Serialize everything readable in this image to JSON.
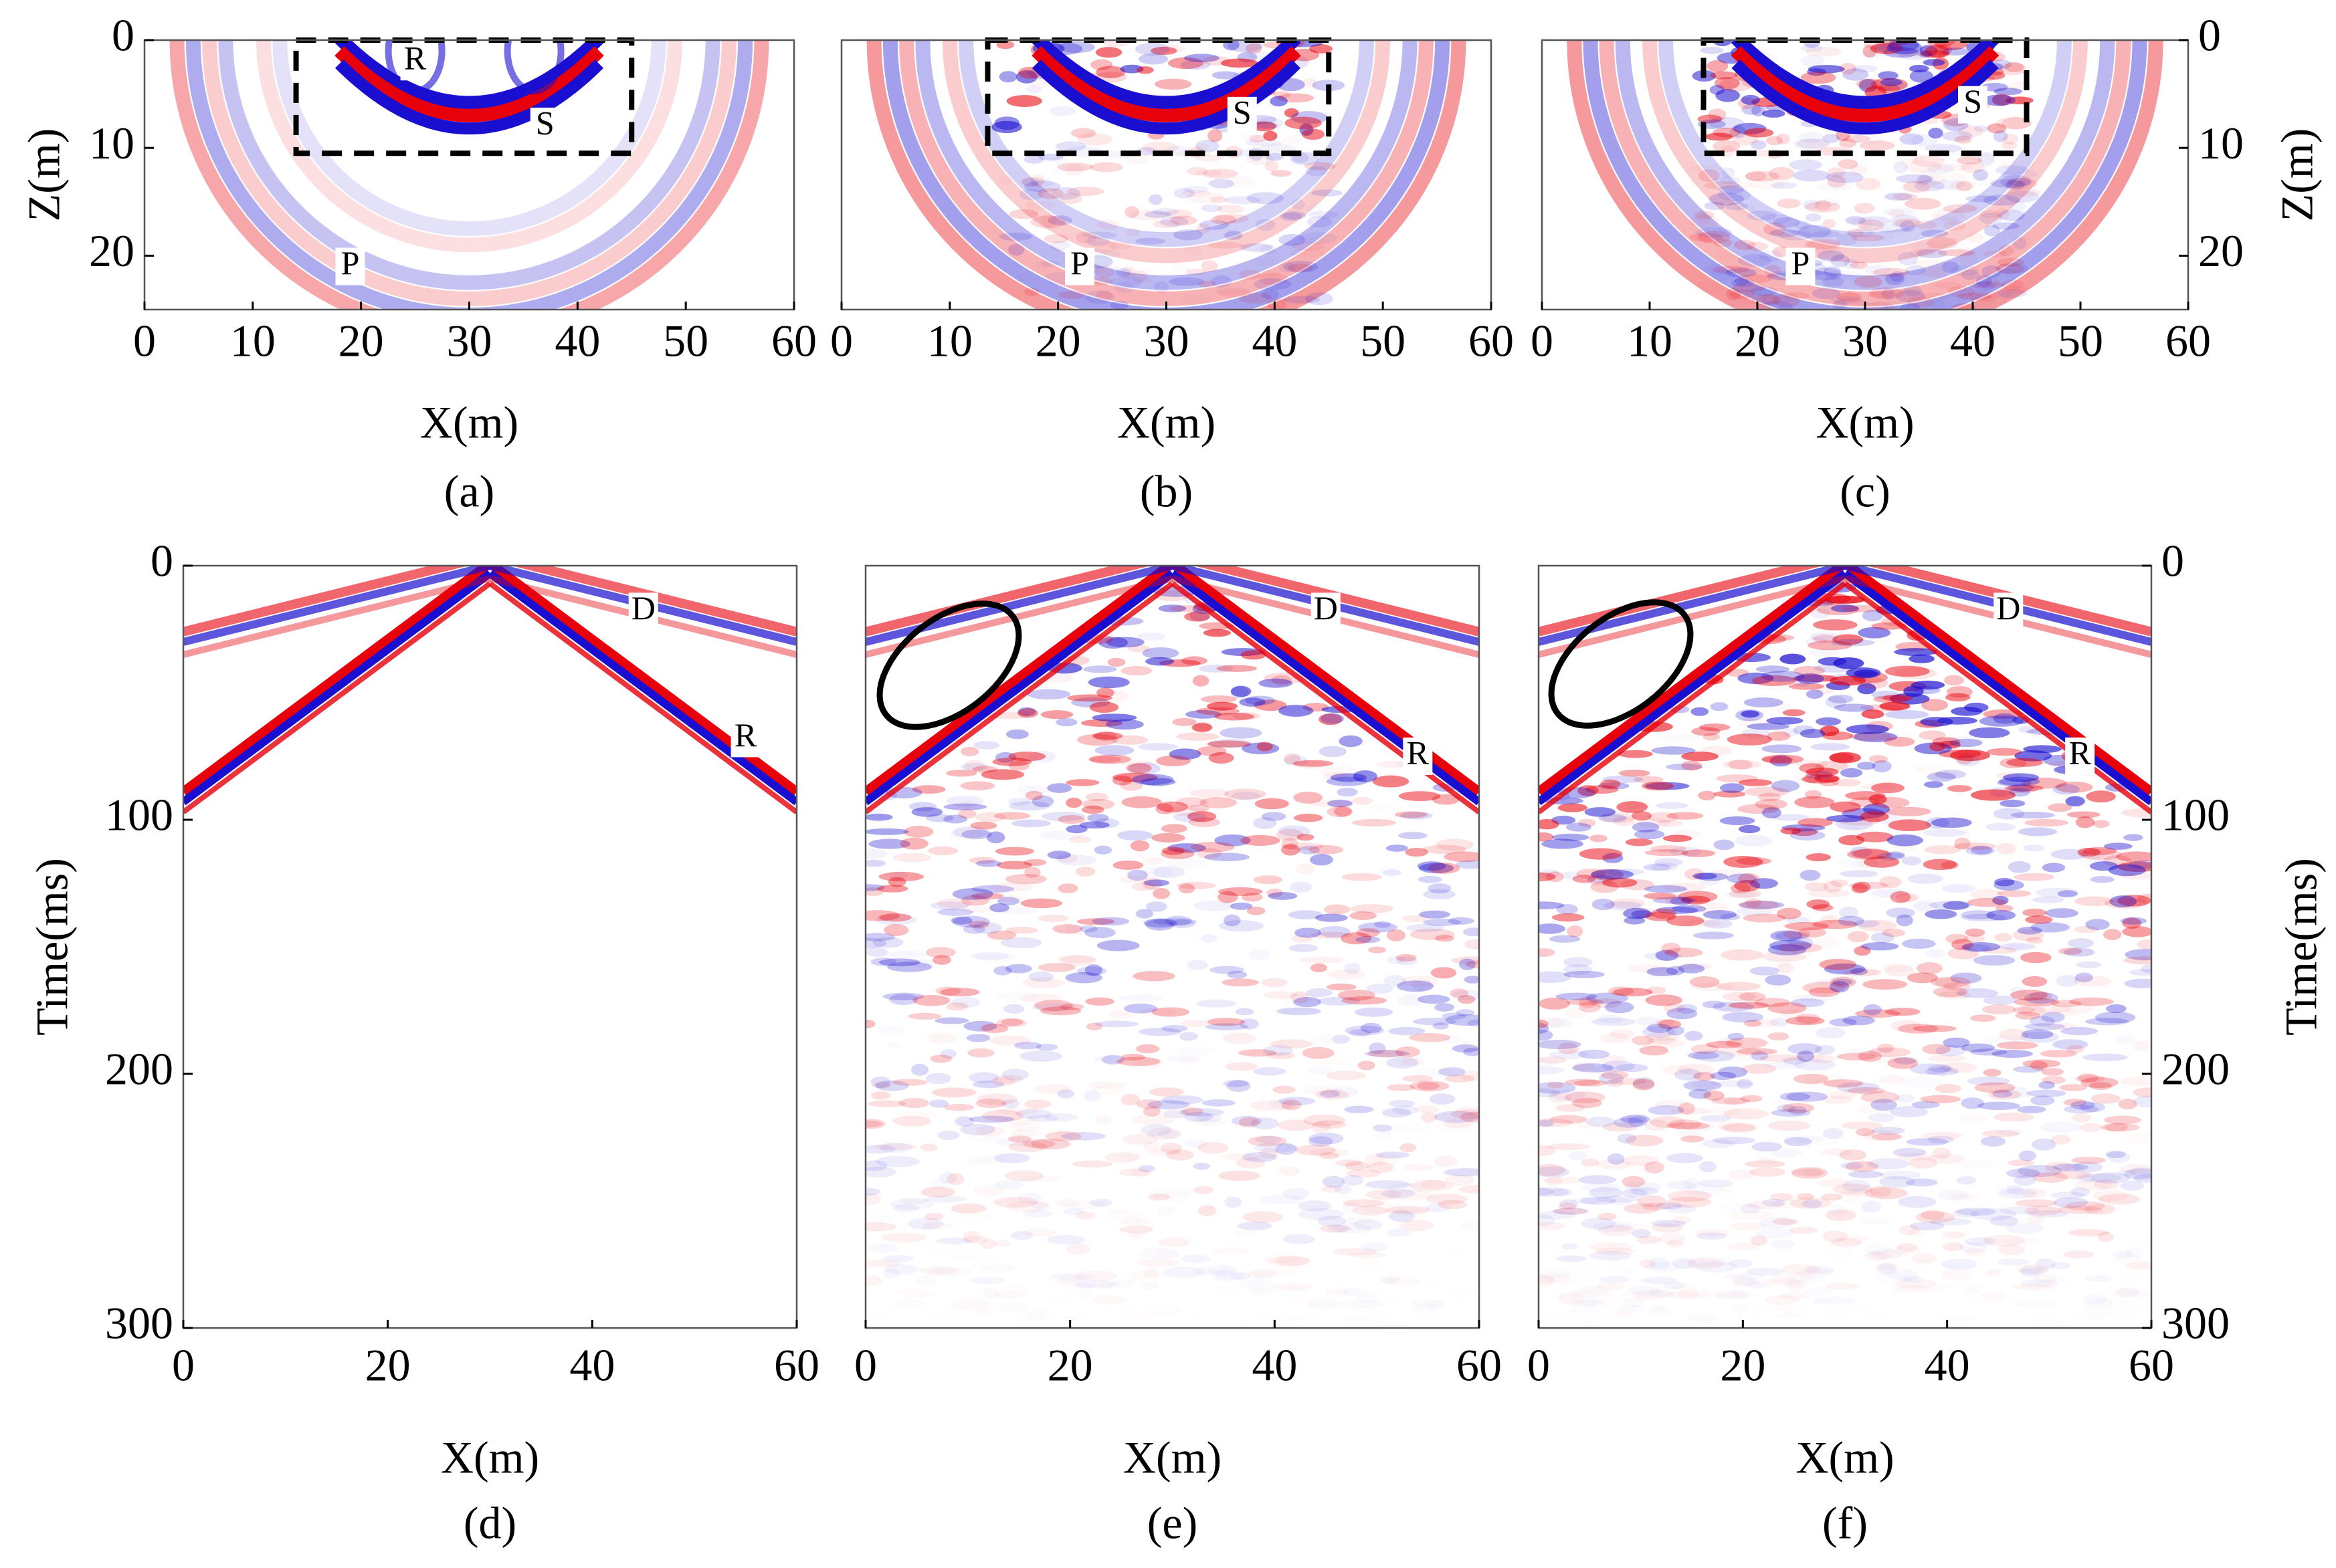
{
  "chart_data": [
    {
      "type": "heatmap",
      "xlabel": "X(m)",
      "ylabel": "Z(m)",
      "caption": "(a)",
      "xlim": [
        0,
        60
      ],
      "ylim": [
        0,
        25
      ],
      "y_inverted": true,
      "xticks": [
        0,
        10,
        20,
        30,
        40,
        50,
        60
      ],
      "yticks": [
        0,
        10,
        20
      ],
      "yaxis_side": "left",
      "annotations": [
        "R",
        "S",
        "P"
      ]
    },
    {
      "type": "heatmap",
      "xlabel": "X(m)",
      "caption": "(b)",
      "xlim": [
        0,
        60
      ],
      "ylim": [
        0,
        25
      ],
      "y_inverted": true,
      "xticks": [
        0,
        10,
        20,
        30,
        40,
        50,
        60
      ],
      "annotations": [
        "S",
        "P"
      ]
    },
    {
      "type": "heatmap",
      "xlabel": "X(m)",
      "ylabel": "Z(m)",
      "caption": "(c)",
      "xlim": [
        0,
        60
      ],
      "ylim": [
        0,
        25
      ],
      "y_inverted": true,
      "xticks": [
        0,
        10,
        20,
        30,
        40,
        50,
        60
      ],
      "yticks": [
        0,
        10,
        20
      ],
      "yaxis_side": "right",
      "annotations": [
        "S",
        "P"
      ]
    },
    {
      "type": "heatmap",
      "xlabel": "X(m)",
      "ylabel": "Time(ms)",
      "caption": "(d)",
      "xlim": [
        0,
        60
      ],
      "ylim": [
        0,
        300
      ],
      "y_inverted": true,
      "xticks": [
        0,
        20,
        40,
        60
      ],
      "yticks": [
        0,
        100,
        200,
        300
      ],
      "yaxis_side": "left",
      "annotations": [
        "D",
        "R"
      ]
    },
    {
      "type": "heatmap",
      "xlabel": "X(m)",
      "caption": "(e)",
      "xlim": [
        0,
        60
      ],
      "ylim": [
        0,
        300
      ],
      "y_inverted": true,
      "xticks": [
        0,
        20,
        40,
        60
      ],
      "annotations": [
        "D",
        "R"
      ]
    },
    {
      "type": "heatmap",
      "xlabel": "X(m)",
      "ylabel": "Time(ms)",
      "caption": "(f)",
      "xlim": [
        0,
        60
      ],
      "ylim": [
        0,
        300
      ],
      "y_inverted": true,
      "xticks": [
        0,
        20,
        40,
        60
      ],
      "yticks": [
        0,
        100,
        200,
        300
      ],
      "yaxis_side": "right",
      "annotations": [
        "D",
        "R"
      ]
    }
  ]
}
